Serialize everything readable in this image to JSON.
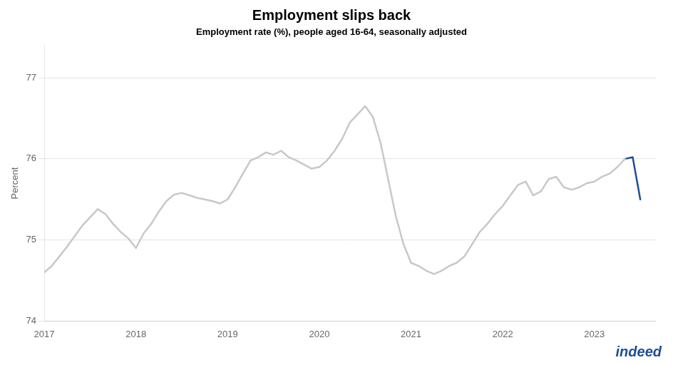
{
  "chart_data": {
    "type": "line",
    "title": "Employment slips back",
    "subtitle": "Employment rate (%), people aged 16-64, seasonally adjusted",
    "ylabel": "Percent",
    "annotations": [
      {
        "text": "indeed",
        "color": "#1f4e99"
      }
    ],
    "x": [
      2017.0,
      2017.083,
      2017.167,
      2017.25,
      2017.333,
      2017.417,
      2017.5,
      2017.583,
      2017.667,
      2017.75,
      2017.833,
      2017.917,
      2018.0,
      2018.083,
      2018.167,
      2018.25,
      2018.333,
      2018.417,
      2018.5,
      2018.583,
      2018.667,
      2018.75,
      2018.833,
      2018.917,
      2019.0,
      2019.083,
      2019.167,
      2019.25,
      2019.333,
      2019.417,
      2019.5,
      2019.583,
      2019.667,
      2019.75,
      2019.833,
      2019.917,
      2020.0,
      2020.083,
      2020.167,
      2020.25,
      2020.333,
      2020.417,
      2020.5,
      2020.583,
      2020.667,
      2020.75,
      2020.833,
      2020.917,
      2021.0,
      2021.083,
      2021.167,
      2021.25,
      2021.333,
      2021.417,
      2021.5,
      2021.583,
      2021.667,
      2021.75,
      2021.833,
      2021.917,
      2022.0,
      2022.083,
      2022.167,
      2022.25,
      2022.333,
      2022.417,
      2022.5,
      2022.583,
      2022.667,
      2022.75,
      2022.833,
      2022.917,
      2023.0,
      2023.083,
      2023.167,
      2023.25,
      2023.333,
      2023.417,
      2023.5
    ],
    "series": [
      {
        "color": "#c8c8c8",
        "values": [
          74.6,
          74.68,
          74.8,
          74.92,
          75.05,
          75.18,
          75.28,
          75.38,
          75.32,
          75.2,
          75.1,
          75.02,
          74.9,
          75.08,
          75.2,
          75.35,
          75.48,
          75.56,
          75.58,
          75.55,
          75.52,
          75.5,
          75.48,
          75.45,
          75.5,
          75.65,
          75.82,
          75.98,
          76.02,
          76.08,
          76.05,
          76.1,
          76.02,
          75.98,
          75.93,
          75.88,
          75.9,
          75.98,
          76.1,
          76.25,
          76.45,
          76.55,
          76.65,
          76.52,
          76.2,
          75.75,
          75.3,
          74.95,
          74.72,
          74.68,
          74.62,
          74.58,
          74.62,
          74.68,
          74.72,
          74.8,
          74.95,
          75.1,
          75.2,
          75.32,
          75.42,
          75.55,
          75.68,
          75.72,
          75.55,
          75.6,
          75.75,
          75.78,
          75.65,
          75.62,
          75.65,
          75.7,
          75.72,
          75.78,
          75.82,
          75.9,
          76.0,
          null,
          null
        ]
      },
      {
        "color": "#1f4e99",
        "values": [
          null,
          null,
          null,
          null,
          null,
          null,
          null,
          null,
          null,
          null,
          null,
          null,
          null,
          null,
          null,
          null,
          null,
          null,
          null,
          null,
          null,
          null,
          null,
          null,
          null,
          null,
          null,
          null,
          null,
          null,
          null,
          null,
          null,
          null,
          null,
          null,
          null,
          null,
          null,
          null,
          null,
          null,
          null,
          null,
          null,
          null,
          null,
          null,
          null,
          null,
          null,
          null,
          null,
          null,
          null,
          null,
          null,
          null,
          null,
          null,
          null,
          null,
          null,
          null,
          null,
          null,
          null,
          null,
          null,
          null,
          null,
          null,
          null,
          null,
          null,
          null,
          76.0,
          76.02,
          75.5
        ]
      }
    ],
    "xlim": [
      2017.0,
      2023.67
    ],
    "xticks": [
      2017,
      2018,
      2019,
      2020,
      2021,
      2022,
      2023
    ],
    "ylim": [
      74.0,
      77.4
    ],
    "yticks": [
      74,
      75,
      76,
      77
    ],
    "grid": true
  }
}
